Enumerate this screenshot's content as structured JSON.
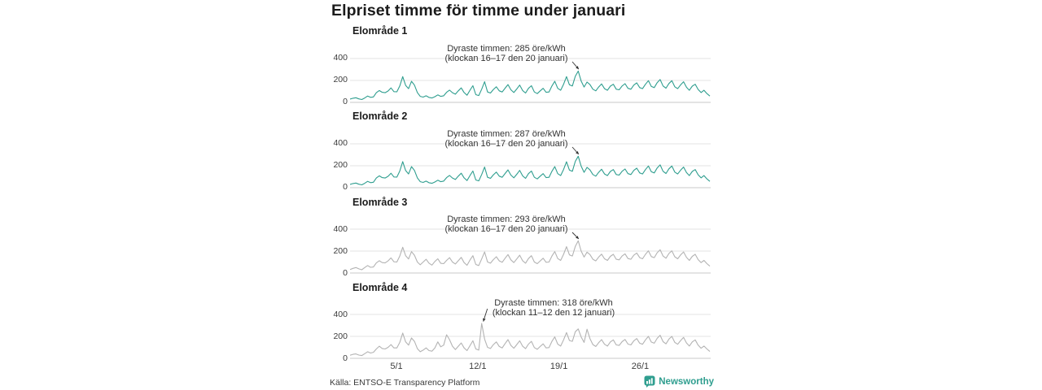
{
  "title": "Elpriset timme för timme under januari",
  "source": "Källa: ENTSO-E Transparency Platform",
  "brand": {
    "name": "Newsworthy",
    "color": "#2f9e8f"
  },
  "colors": {
    "teal_line": "#2f9e8f",
    "gray_line": "#b3b3b3",
    "gridline": "#e3e3e3",
    "zero_line": "#c8c8c8",
    "text_dark": "#1b1b1b",
    "text_muted": "#3c3c3c"
  },
  "axis": {
    "y_ticks": [
      "0",
      "200",
      "400"
    ],
    "x_ticks": [
      "5/1",
      "12/1",
      "19/1",
      "26/1"
    ],
    "x_tick_days": [
      5,
      12,
      19,
      26
    ]
  },
  "chart_data": [
    {
      "type": "line",
      "title": "Elområde 1",
      "annotation": [
        "Dyraste timmen: 285 öre/kWh",
        "(klockan 16–17 den 20 januari)"
      ],
      "max_value": 285,
      "peak_index": 78,
      "color": "#2f9e8f",
      "xlabel": "",
      "ylabel": "öre/kWh",
      "ylim": [
        0,
        440
      ],
      "x_range_days": [
        1,
        31
      ],
      "values": [
        30,
        38,
        42,
        32,
        26,
        40,
        58,
        46,
        50,
        88,
        108,
        92,
        88,
        104,
        132,
        98,
        96,
        150,
        235,
        155,
        125,
        192,
        158,
        90,
        55,
        48,
        60,
        45,
        40,
        52,
        68,
        55,
        60,
        92,
        112,
        88,
        75,
        105,
        132,
        90,
        65,
        110,
        152,
        70,
        62,
        120,
        188,
        95,
        85,
        118,
        142,
        105,
        95,
        130,
        162,
        115,
        90,
        122,
        158,
        108,
        85,
        128,
        152,
        95,
        80,
        105,
        128,
        92,
        95,
        150,
        192,
        128,
        110,
        165,
        235,
        160,
        150,
        238,
        285,
        195,
        140,
        185,
        162,
        120,
        105,
        140,
        168,
        125,
        110,
        148,
        165,
        120,
        115,
        150,
        170,
        128,
        120,
        158,
        178,
        135,
        125,
        165,
        198,
        145,
        135,
        180,
        208,
        150,
        130,
        172,
        198,
        142,
        125,
        160,
        188,
        138,
        110,
        148,
        165,
        118,
        90,
        110,
        80,
        58
      ]
    },
    {
      "type": "line",
      "title": "Elområde 2",
      "annotation": [
        "Dyraste timmen: 287 öre/kWh",
        "(klockan 16–17 den 20 januari)"
      ],
      "max_value": 287,
      "peak_index": 78,
      "color": "#2f9e8f",
      "xlabel": "",
      "ylabel": "öre/kWh",
      "ylim": [
        0,
        440
      ],
      "x_range_days": [
        1,
        31
      ],
      "values": [
        30,
        38,
        42,
        32,
        26,
        40,
        58,
        46,
        50,
        88,
        108,
        92,
        88,
        104,
        132,
        98,
        96,
        152,
        238,
        156,
        125,
        192,
        158,
        90,
        55,
        48,
        60,
        45,
        40,
        52,
        68,
        55,
        60,
        92,
        112,
        88,
        75,
        105,
        132,
        90,
        65,
        110,
        152,
        70,
        62,
        120,
        188,
        95,
        85,
        118,
        142,
        105,
        95,
        130,
        162,
        115,
        90,
        122,
        158,
        108,
        85,
        128,
        152,
        95,
        80,
        105,
        128,
        92,
        95,
        150,
        192,
        128,
        110,
        166,
        236,
        160,
        150,
        240,
        287,
        196,
        140,
        185,
        162,
        120,
        105,
        140,
        168,
        125,
        110,
        148,
        165,
        120,
        115,
        150,
        170,
        128,
        120,
        158,
        178,
        135,
        125,
        165,
        198,
        145,
        135,
        180,
        208,
        150,
        130,
        172,
        198,
        142,
        125,
        160,
        188,
        138,
        110,
        148,
        165,
        118,
        90,
        110,
        80,
        58
      ]
    },
    {
      "type": "line",
      "title": "Elområde 3",
      "annotation": [
        "Dyraste timmen: 293 öre/kWh",
        "(klockan 16–17 den 20 januari)"
      ],
      "max_value": 293,
      "peak_index": 78,
      "color": "#b3b3b3",
      "xlabel": "",
      "ylabel": "öre/kWh",
      "ylim": [
        0,
        440
      ],
      "x_range_days": [
        1,
        31
      ],
      "values": [
        32,
        42,
        50,
        38,
        30,
        50,
        68,
        52,
        55,
        92,
        112,
        95,
        92,
        110,
        138,
        102,
        100,
        155,
        235,
        158,
        128,
        195,
        162,
        100,
        75,
        100,
        125,
        90,
        72,
        105,
        130,
        88,
        85,
        115,
        140,
        100,
        82,
        112,
        142,
        95,
        70,
        118,
        158,
        78,
        68,
        128,
        192,
        100,
        90,
        122,
        148,
        110,
        98,
        135,
        168,
        120,
        95,
        128,
        162,
        112,
        90,
        132,
        158,
        100,
        85,
        110,
        135,
        98,
        100,
        155,
        195,
        132,
        115,
        170,
        240,
        165,
        155,
        242,
        293,
        200,
        145,
        190,
        168,
        125,
        110,
        145,
        172,
        130,
        115,
        152,
        170,
        125,
        120,
        155,
        175,
        132,
        125,
        162,
        182,
        140,
        130,
        170,
        202,
        150,
        140,
        185,
        212,
        155,
        135,
        178,
        202,
        148,
        130,
        165,
        192,
        142,
        115,
        152,
        170,
        122,
        95,
        115,
        85,
        62
      ]
    },
    {
      "type": "line",
      "title": "Elområde 4",
      "annotation": [
        "Dyraste timmen: 318 öre/kWh",
        "(klockan 11–12 den 12 januari)"
      ],
      "max_value": 318,
      "peak_index": 45,
      "color": "#b3b3b3",
      "xlabel": "",
      "ylabel": "öre/kWh",
      "ylim": [
        0,
        440
      ],
      "x_range_days": [
        1,
        31
      ],
      "values": [
        28,
        36,
        40,
        30,
        25,
        42,
        60,
        48,
        55,
        85,
        110,
        90,
        85,
        100,
        125,
        95,
        95,
        145,
        230,
        150,
        120,
        185,
        155,
        88,
        60,
        75,
        95,
        70,
        65,
        95,
        150,
        105,
        120,
        215,
        170,
        110,
        80,
        110,
        140,
        95,
        70,
        115,
        160,
        85,
        75,
        318,
        175,
        100,
        90,
        125,
        150,
        108,
        95,
        135,
        170,
        118,
        92,
        125,
        160,
        110,
        88,
        130,
        155,
        98,
        82,
        108,
        132,
        95,
        98,
        155,
        195,
        130,
        112,
        168,
        235,
        162,
        155,
        242,
        268,
        195,
        145,
        265,
        180,
        125,
        108,
        142,
        170,
        128,
        112,
        150,
        168,
        122,
        118,
        152,
        172,
        130,
        122,
        160,
        180,
        138,
        128,
        168,
        200,
        148,
        138,
        182,
        210,
        152,
        132,
        175,
        200,
        145,
        128,
        162,
        190,
        140,
        112,
        150,
        168,
        120,
        92,
        112,
        85,
        62
      ]
    }
  ]
}
